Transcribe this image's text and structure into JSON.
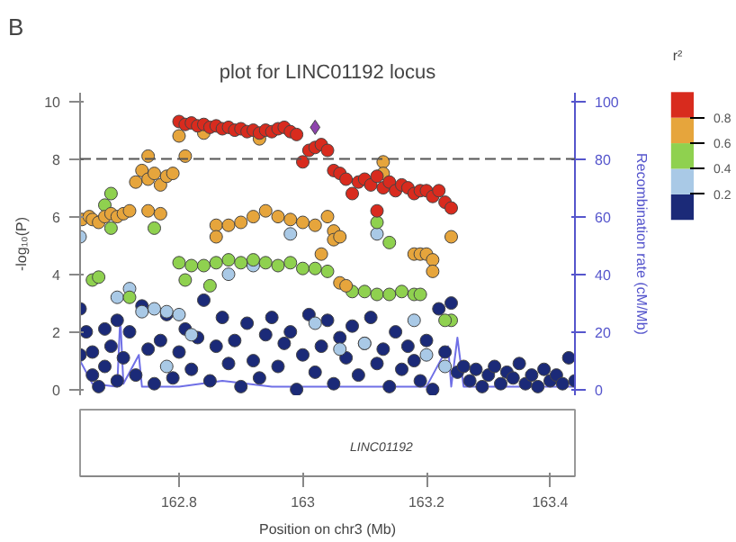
{
  "chart_data": {
    "type": "scatter",
    "title": "plot for LINC01192 locus",
    "xlabel": "Position on chr3 (Mb)",
    "ylabel": "-log₁₀(P)",
    "y2label": "Recombination rate (cM/Mb)",
    "clabel": "r²",
    "annotations": [
      "B",
      "LINC01192"
    ],
    "xlim": [
      162.64,
      163.44
    ],
    "xticks": [
      162.8,
      163,
      163.2,
      163.4
    ],
    "ylim": [
      -0.2,
      10.3
    ],
    "yticks": [
      0,
      2,
      4,
      6,
      8,
      10
    ],
    "y2lim": [
      -2,
      103
    ],
    "y2ticks": [
      0,
      20,
      40,
      60,
      80,
      100
    ],
    "clim": [
      0,
      1
    ],
    "cticks": [
      0.2,
      0.4,
      0.6,
      0.8
    ],
    "marker": "circle",
    "grid": false,
    "ref_lines": [
      {
        "axis": "y",
        "value": 8,
        "line_style": "dashed",
        "color": "#555555"
      }
    ],
    "series": [
      {
        "color": "#1b2a78",
        "x": [
          162.64,
          162.64,
          162.65,
          162.66,
          162.66,
          162.67,
          162.68,
          162.68,
          162.69,
          162.7,
          162.7,
          162.71,
          162.72,
          162.73,
          162.74,
          162.75,
          162.76,
          162.77,
          162.78,
          162.79,
          162.8,
          162.81,
          162.82,
          162.83,
          162.84,
          162.85,
          162.86,
          162.87,
          162.88,
          162.89,
          162.9,
          162.91,
          162.92,
          162.93,
          162.94,
          162.95,
          162.96,
          162.97,
          162.98,
          162.99,
          163.0,
          163.01,
          163.02,
          163.03,
          163.04,
          163.05,
          163.06,
          163.07,
          163.08,
          163.09,
          163.1,
          163.11,
          163.12,
          163.13,
          163.14,
          163.15,
          163.16,
          163.17,
          163.18,
          163.19,
          163.2,
          163.21,
          163.22,
          163.23,
          163.24,
          163.25,
          163.26,
          163.27,
          163.28,
          163.29,
          163.3,
          163.31,
          163.32,
          163.33,
          163.34,
          163.35,
          163.36,
          163.37,
          163.38,
          163.39,
          163.4,
          163.41,
          163.42,
          163.43,
          163.44
        ],
        "values": [
          2.8,
          1.2,
          2.0,
          0.5,
          1.3,
          0.1,
          2.1,
          0.8,
          1.5,
          2.4,
          0.3,
          1.1,
          2.0,
          0.5,
          2.9,
          1.4,
          0.2,
          1.7,
          2.6,
          0.4,
          1.3,
          2.1,
          0.7,
          1.8,
          3.1,
          0.3,
          1.5,
          2.5,
          0.9,
          1.7,
          0.1,
          2.3,
          1.0,
          0.4,
          1.9,
          2.5,
          0.8,
          1.6,
          2.0,
          0.0,
          1.2,
          2.6,
          0.6,
          1.5,
          2.4,
          0.2,
          1.8,
          1.1,
          2.2,
          0.5,
          1.6,
          2.5,
          0.9,
          1.4,
          0.1,
          2.0,
          0.7,
          1.5,
          1.0,
          0.3,
          1.7,
          0.0,
          2.8,
          1.3,
          3.0,
          0.6,
          0.8,
          0.3,
          0.7,
          0.1,
          0.5,
          0.8,
          0.2,
          0.6,
          0.4,
          0.9,
          0.2,
          0.5,
          0.1,
          0.7,
          0.3,
          0.5,
          0.2,
          1.1,
          0.3
        ]
      },
      {
        "color": "#a9c9e6",
        "x": [
          162.64,
          162.7,
          162.72,
          162.74,
          162.76,
          162.78,
          162.8,
          162.82,
          162.78,
          162.92,
          162.98,
          163.02,
          163.06,
          163.1,
          163.18,
          163.2,
          163.23,
          163.12,
          162.88
        ],
        "values": [
          5.3,
          3.2,
          3.5,
          2.7,
          2.8,
          2.7,
          2.6,
          1.9,
          0.8,
          4.3,
          5.4,
          2.3,
          1.4,
          1.6,
          2.4,
          1.2,
          0.8,
          5.4,
          4.0
        ]
      },
      {
        "color": "#8fd14f",
        "x": [
          162.8,
          162.82,
          162.84,
          162.86,
          162.88,
          162.9,
          162.92,
          162.94,
          162.96,
          162.98,
          163.0,
          163.02,
          163.04,
          162.66,
          162.67,
          162.68,
          162.69,
          162.69,
          162.76,
          162.72,
          163.08,
          163.1,
          163.12,
          163.14,
          163.16,
          163.18,
          163.19,
          163.12,
          163.14,
          163.24,
          163.23,
          162.85,
          162.81
        ],
        "values": [
          4.4,
          4.3,
          4.3,
          4.4,
          4.5,
          4.4,
          4.5,
          4.4,
          4.3,
          4.4,
          4.2,
          4.2,
          4.1,
          3.8,
          3.9,
          6.4,
          6.8,
          5.6,
          5.6,
          3.2,
          3.4,
          3.4,
          3.3,
          3.3,
          3.4,
          3.3,
          3.3,
          5.8,
          5.1,
          2.4,
          2.4,
          3.6,
          3.8
        ]
      },
      {
        "color": "#e6a53c",
        "x": [
          162.643,
          162.655,
          162.66,
          162.67,
          162.68,
          162.69,
          162.7,
          162.71,
          162.72,
          162.73,
          162.74,
          162.75,
          162.76,
          162.77,
          162.78,
          162.79,
          162.75,
          162.8,
          162.81,
          162.75,
          162.77,
          162.86,
          162.88,
          162.9,
          162.92,
          162.94,
          162.96,
          162.98,
          163.0,
          163.02,
          163.04,
          163.05,
          163.05,
          163.06,
          162.93,
          162.84,
          163.06,
          163.07,
          163.18,
          163.19,
          163.2,
          163.21,
          163.21,
          163.24,
          163.13,
          163.13,
          162.86,
          163.03
        ],
        "values": [
          5.9,
          6.0,
          5.9,
          5.8,
          6.0,
          6.1,
          6.0,
          6.1,
          6.2,
          7.2,
          7.6,
          7.3,
          7.5,
          7.1,
          7.4,
          7.5,
          8.1,
          8.8,
          8.1,
          6.2,
          6.1,
          5.7,
          5.7,
          5.8,
          6.0,
          6.2,
          6.0,
          5.9,
          5.8,
          5.7,
          6.0,
          5.5,
          5.2,
          5.3,
          8.7,
          8.9,
          3.7,
          3.6,
          4.7,
          4.7,
          4.7,
          4.5,
          4.1,
          5.3,
          7.9,
          7.5,
          5.3,
          4.7
        ]
      },
      {
        "color": "#d82b1e",
        "x": [
          162.8,
          162.81,
          162.82,
          162.83,
          162.84,
          162.85,
          162.86,
          162.87,
          162.88,
          162.89,
          162.9,
          162.91,
          162.92,
          162.93,
          162.94,
          162.95,
          162.96,
          162.97,
          162.98,
          162.99,
          163.0,
          163.01,
          163.02,
          163.03,
          163.04,
          163.05,
          163.06,
          163.07,
          163.08,
          163.09,
          163.1,
          163.11,
          163.12,
          163.13,
          163.14,
          163.15,
          163.16,
          163.17,
          163.18,
          163.19,
          163.2,
          163.21,
          163.22,
          163.23,
          163.24,
          163.12
        ],
        "values": [
          9.3,
          9.2,
          9.25,
          9.15,
          9.2,
          9.1,
          9.15,
          9.05,
          9.1,
          9.0,
          9.05,
          8.95,
          9.0,
          8.9,
          9.0,
          8.95,
          9.05,
          9.1,
          8.95,
          8.85,
          7.9,
          8.3,
          8.4,
          8.5,
          8.3,
          7.6,
          7.5,
          7.3,
          6.8,
          7.2,
          7.3,
          7.1,
          7.4,
          7.0,
          7.2,
          6.9,
          7.1,
          7.0,
          6.8,
          6.9,
          6.9,
          6.7,
          6.9,
          6.5,
          6.3,
          6.2
        ]
      },
      {
        "color": "#8e44ad",
        "marker": "diamond",
        "x": [
          163.02
        ],
        "values": [
          9.1
        ]
      },
      {
        "type": "line",
        "axis": "y2",
        "marker": "none",
        "color": "#6f6fe6",
        "x": [
          162.64,
          162.66,
          162.7,
          162.705,
          162.71,
          162.735,
          162.74,
          162.8,
          162.87,
          162.95,
          163.0,
          163.1,
          163.2,
          163.235,
          163.24,
          163.25,
          163.26,
          163.44
        ],
        "values": [
          10,
          2,
          1,
          25,
          2,
          12,
          1,
          1,
          3,
          1,
          1,
          1,
          1,
          15,
          1,
          18,
          1,
          1
        ]
      }
    ]
  }
}
